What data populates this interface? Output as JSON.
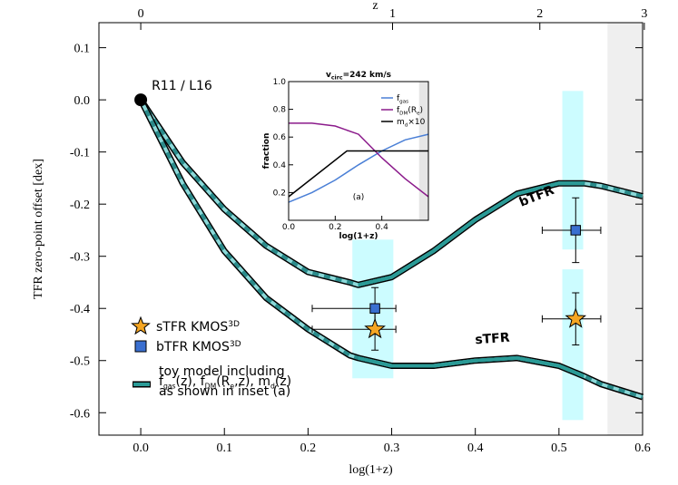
{
  "chart_data": [
    {
      "type": "line",
      "xlabel": "log(1+z)",
      "ylabel": "TFR zero-point offset [dex]",
      "x2label": "z",
      "xlim": [
        -0.05,
        0.6
      ],
      "ylim": [
        -0.643,
        0.148
      ],
      "xticks": [
        {
          "value": 0,
          "label": "0.0"
        },
        0.1,
        0.2,
        0.3,
        0.4,
        0.5,
        0.6
      ],
      "yticks": [
        -0.6,
        -0.5,
        -0.4,
        -0.3,
        -0.2,
        -0.1,
        {
          "value": 0,
          "label": "0.0"
        },
        0.1
      ],
      "x2ticks": [
        0,
        1,
        2,
        3
      ],
      "x2_scale": "log10(1+z)",
      "shaded_xrange": [
        0.558,
        0.6
      ],
      "bands": [
        {
          "x": [
            0.253,
            0.302
          ],
          "y": [
            -0.534,
            -0.268
          ]
        },
        {
          "x": [
            0.504,
            0.529
          ],
          "y": [
            -0.287,
            0.017
          ]
        },
        {
          "x": [
            0.504,
            0.529
          ],
          "y": [
            -0.614,
            -0.325
          ]
        }
      ],
      "solid_xrange": [
        0.26,
        0.53
      ],
      "reference": {
        "label": "R11 / L16",
        "x": 0,
        "value": 0
      },
      "series": [
        {
          "name": "bTFR",
          "color": "#3a6fd0",
          "x": [
            0,
            0.05,
            0.1,
            0.15,
            0.2,
            0.25,
            0.26,
            0.3,
            0.35,
            0.4,
            0.45,
            0.5,
            0.53,
            0.55,
            0.6
          ],
          "values": [
            0,
            -0.12,
            -0.21,
            -0.28,
            -0.33,
            -0.35,
            -0.355,
            -0.34,
            -0.29,
            -0.23,
            -0.18,
            -0.16,
            -0.16,
            -0.165,
            -0.185
          ]
        },
        {
          "name": "sTFR",
          "color": "#f0a020",
          "x": [
            0,
            0.05,
            0.1,
            0.15,
            0.2,
            0.25,
            0.26,
            0.3,
            0.35,
            0.4,
            0.45,
            0.5,
            0.53,
            0.55,
            0.6
          ],
          "values": [
            0,
            -0.16,
            -0.29,
            -0.38,
            -0.44,
            -0.49,
            -0.495,
            -0.51,
            -0.51,
            -0.5,
            -0.495,
            -0.51,
            -0.53,
            -0.545,
            -0.57
          ]
        },
        {
          "name": [
            {
              "t": "sTFR KMOS"
            },
            {
              "sup": "3D"
            }
          ],
          "marker": "star",
          "color": "#f5a623",
          "x": [
            0.28,
            0.52
          ],
          "values": [
            -0.44,
            -0.42
          ],
          "xerr_minus": [
            0.075,
            0.04
          ],
          "xerr_plus": [
            0.025,
            0.03
          ],
          "yerr": [
            0.04,
            0.05
          ]
        },
        {
          "name": [
            {
              "t": "bTFR KMOS"
            },
            {
              "sup": "3D"
            }
          ],
          "marker": "square",
          "color": "#3a6fd0",
          "x": [
            0.28,
            0.52
          ],
          "values": [
            -0.4,
            -0.25
          ],
          "xerr_minus": [
            0.075,
            0.04
          ],
          "xerr_plus": [
            0.025,
            0.03
          ],
          "yerr": [
            0.04,
            0.062
          ]
        }
      ],
      "model_legend": [
        [
          {
            "t": "toy model including"
          }
        ],
        [
          {
            "t": "f"
          },
          {
            "sub": "gas"
          },
          {
            "t": "(z), f"
          },
          {
            "sub": "DM"
          },
          {
            "t": "(R"
          },
          {
            "sub": "e"
          },
          {
            "t": ",z), m"
          },
          {
            "sub": "d"
          },
          {
            "t": "(z)"
          }
        ],
        [
          {
            "t": "as shown in inset (a)"
          }
        ]
      ]
    },
    {
      "type": "line",
      "title": [
        {
          "t": "v"
        },
        {
          "sub": "circ"
        },
        {
          "t": "=242 km/s"
        }
      ],
      "xlabel": "log(1+z)",
      "ylabel": "fraction",
      "annotation": "(a)",
      "xlim": [
        0,
        0.6
      ],
      "ylim": [
        0,
        1
      ],
      "xticks": [
        {
          "value": 0,
          "label": "0.0"
        },
        0.2,
        0.4
      ],
      "yticks": [
        0.2,
        0.4,
        0.6,
        0.8,
        {
          "value": 1,
          "label": "1.0"
        }
      ],
      "shaded_xrange": [
        0.56,
        0.6
      ],
      "series": [
        {
          "name": [
            {
              "t": "f"
            },
            {
              "sub": "gas"
            }
          ],
          "color": "#4a7fd6",
          "x": [
            0,
            0.1,
            0.2,
            0.3,
            0.4,
            0.5,
            0.6
          ],
          "values": [
            0.13,
            0.2,
            0.29,
            0.4,
            0.5,
            0.58,
            0.62
          ]
        },
        {
          "name": [
            {
              "t": "f"
            },
            {
              "sub": "DM"
            },
            {
              "t": "(R"
            },
            {
              "sub": "e"
            },
            {
              "t": ")"
            }
          ],
          "color": "#8b1a8b",
          "x": [
            0,
            0.1,
            0.2,
            0.3,
            0.4,
            0.5,
            0.6
          ],
          "values": [
            0.7,
            0.7,
            0.68,
            0.62,
            0.45,
            0.3,
            0.17
          ]
        },
        {
          "name": [
            {
              "t": "m"
            },
            {
              "sub": "d"
            },
            {
              "t": "×10"
            }
          ],
          "color": "#000000",
          "x": [
            0,
            0.25,
            0.6
          ],
          "values": [
            0.17,
            0.5,
            0.5
          ]
        }
      ]
    }
  ]
}
